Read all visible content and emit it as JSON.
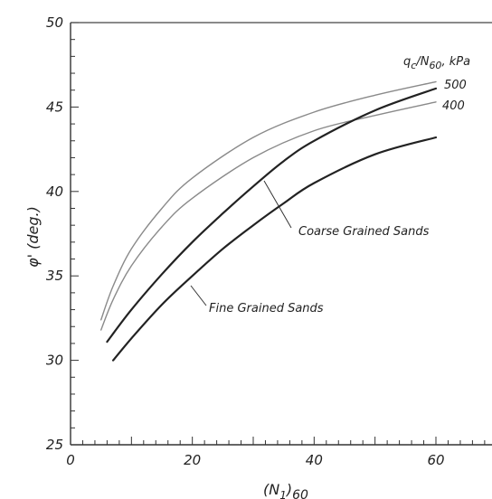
{
  "chart_data": {
    "type": "line",
    "title": "",
    "xlabel_main": "(N",
    "xlabel_sub1": "1",
    "xlabel_close": ")",
    "xlabel_sub2": "60",
    "ylabel": "φ' (deg.)",
    "xlim": [
      0,
      70
    ],
    "ylim": [
      25,
      50
    ],
    "x_ticks": [
      0,
      20,
      40,
      60
    ],
    "y_ticks": [
      25,
      30,
      35,
      40,
      45,
      50
    ],
    "legend_title_main": "q",
    "legend_title_sub": "c",
    "legend_title_mid": "/N",
    "legend_title_sub2": "60",
    "legend_title_unit": ", kPa",
    "series": [
      {
        "name": "500",
        "x": [
          5,
          7,
          10,
          15,
          20,
          30,
          40,
          50,
          60
        ],
        "y": [
          32.4,
          34.4,
          36.6,
          39.0,
          40.8,
          43.2,
          44.7,
          45.7,
          46.5
        ],
        "color": "#8a8a8a"
      },
      {
        "name": "400",
        "x": [
          5,
          7,
          10,
          15,
          20,
          30,
          40,
          50,
          60
        ],
        "y": [
          31.8,
          33.6,
          35.6,
          37.9,
          39.6,
          42.0,
          43.6,
          44.5,
          45.3
        ],
        "color": "#8a8a8a"
      },
      {
        "name": "Coarse Grained Sands",
        "x": [
          6,
          10,
          15,
          20,
          25,
          30,
          35,
          40,
          50,
          60
        ],
        "y": [
          31.1,
          33.0,
          35.1,
          37.0,
          38.7,
          40.3,
          41.8,
          43.0,
          44.8,
          46.1
        ],
        "color": "#222222"
      },
      {
        "name": "Fine Grained Sands",
        "x": [
          7,
          10,
          15,
          20,
          25,
          30,
          35,
          40,
          50,
          60
        ],
        "y": [
          30.0,
          31.3,
          33.3,
          35.0,
          36.6,
          38.0,
          39.3,
          40.5,
          42.2,
          43.2
        ],
        "color": "#222222"
      }
    ],
    "annotations": {
      "coarse": "Coarse Grained Sands",
      "fine": "Fine Grained Sands"
    },
    "grid": false,
    "legend": "top-right"
  }
}
